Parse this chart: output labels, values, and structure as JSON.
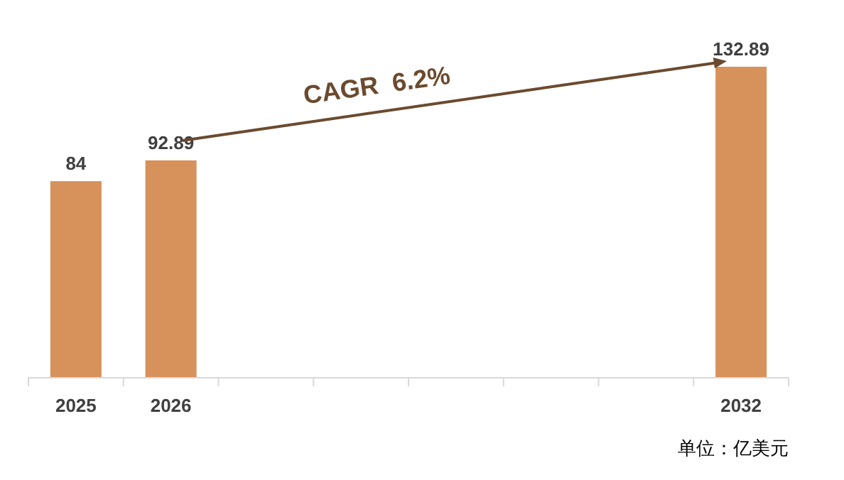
{
  "chart_data": {
    "type": "bar",
    "categories": [
      "2025",
      "2026",
      null,
      null,
      null,
      null,
      null,
      "2032"
    ],
    "values": [
      84,
      92.89,
      null,
      null,
      null,
      null,
      null,
      132.89
    ],
    "color": "#d6925a",
    "data_labels": true,
    "annotations": [
      "CAGR  6.2%",
      "单位：亿美元"
    ]
  }
}
